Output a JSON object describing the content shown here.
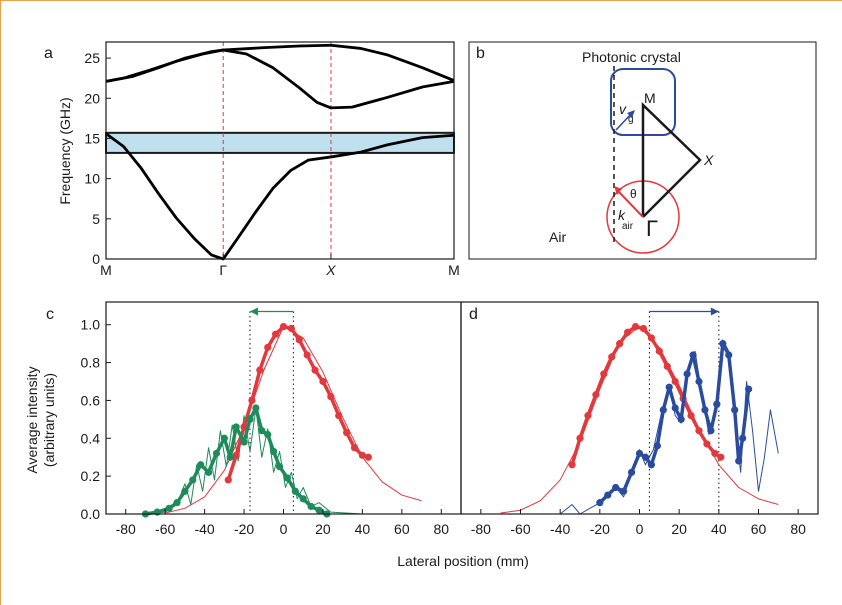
{
  "figure": {
    "frame_color": "#e8a24a",
    "x_axis_label": "Lateral position (mm)",
    "y_axis_label_cd": [
      "Average intensity",
      "(arbitrary units)"
    ]
  },
  "chart_data": [
    {
      "panel": "a",
      "type": "line",
      "ylabel": "Frequency (GHz)",
      "ylim": [
        0,
        27
      ],
      "x_tick_labels": [
        "M",
        "Γ",
        "X",
        "M"
      ],
      "y_ticks": [
        0,
        5,
        10,
        15,
        20,
        25
      ],
      "band_gap": {
        "from": 13.2,
        "to": 15.7,
        "color": "#bfe0ef"
      },
      "bands": [
        {
          "name": "band1",
          "points": [
            [
              0,
              15.6
            ],
            [
              0.1,
              14.0
            ],
            [
              0.2,
              11.3
            ],
            [
              0.3,
              8.1
            ],
            [
              0.4,
              5.1
            ],
            [
              0.5,
              2.6
            ],
            [
              0.6,
              0.5
            ],
            [
              0.667,
              0
            ],
            [
              0.75,
              2.6
            ],
            [
              0.85,
              5.8
            ],
            [
              0.95,
              8.8
            ],
            [
              1.05,
              11.0
            ],
            [
              1.15,
              12.3
            ],
            [
              1.28,
              12.7
            ],
            [
              1.45,
              13.3
            ],
            [
              1.6,
              14.2
            ],
            [
              1.8,
              15.1
            ],
            [
              1.98,
              15.4
            ]
          ]
        },
        {
          "name": "band2",
          "points": [
            [
              0,
              22.1
            ],
            [
              0.15,
              22.7
            ],
            [
              0.3,
              23.8
            ],
            [
              0.45,
              25.0
            ],
            [
              0.6,
              25.8
            ],
            [
              0.667,
              26.0
            ],
            [
              0.8,
              25.5
            ],
            [
              0.95,
              23.8
            ],
            [
              1.1,
              21.3
            ],
            [
              1.2,
              19.5
            ],
            [
              1.28,
              18.8
            ],
            [
              1.4,
              18.9
            ],
            [
              1.6,
              20.1
            ],
            [
              1.8,
              21.4
            ],
            [
              1.98,
              22.1
            ]
          ]
        },
        {
          "name": "band3",
          "points": [
            [
              0,
              22.1
            ],
            [
              0.1,
              22.5
            ],
            [
              0.25,
              23.5
            ],
            [
              0.4,
              24.6
            ],
            [
              0.55,
              25.5
            ],
            [
              0.667,
              26.0
            ],
            [
              0.9,
              26.3
            ],
            [
              1.1,
              26.5
            ],
            [
              1.28,
              26.6
            ],
            [
              1.45,
              26.2
            ],
            [
              1.6,
              25.4
            ],
            [
              1.8,
              23.8
            ],
            [
              1.98,
              22.2
            ]
          ]
        }
      ],
      "x_positions": [
        0,
        0.667,
        1.28,
        1.98
      ]
    },
    {
      "panel": "b",
      "type": "diagram",
      "labels": {
        "top": "Photonic crystal",
        "bottom": "Air",
        "vg": "v",
        "vg_sub": "g",
        "k": "k",
        "k_sub": "air",
        "theta": "θ",
        "m": "M",
        "x": "X",
        "gamma": "Γ"
      }
    },
    {
      "panel": "c",
      "type": "scatter",
      "xlim": [
        -90,
        90
      ],
      "ylim": [
        0,
        1.12
      ],
      "x_ticks": [
        -80,
        -60,
        -40,
        -20,
        0,
        20,
        40,
        60,
        80
      ],
      "y_ticks": [
        0.0,
        0.2,
        0.4,
        0.6,
        0.8,
        1.0
      ],
      "vlines": [
        -17,
        5
      ],
      "arrow": {
        "from": 5,
        "to": -17,
        "y": 1.07,
        "color": "#1f8a5a"
      },
      "series": [
        {
          "name": "incident",
          "color": "#e0393e",
          "kind": "dots",
          "points": [
            [
              -28,
              0.18
            ],
            [
              -24,
              0.31
            ],
            [
              -20,
              0.46
            ],
            [
              -16,
              0.6
            ],
            [
              -12,
              0.76
            ],
            [
              -8,
              0.88
            ],
            [
              -4,
              0.95
            ],
            [
              0,
              0.99
            ],
            [
              4,
              0.98
            ],
            [
              8,
              0.92
            ],
            [
              12,
              0.84
            ],
            [
              16,
              0.76
            ],
            [
              20,
              0.7
            ],
            [
              24,
              0.62
            ],
            [
              28,
              0.52
            ],
            [
              32,
              0.43
            ],
            [
              36,
              0.35
            ],
            [
              40,
              0.31
            ],
            [
              43,
              0.3
            ]
          ]
        },
        {
          "name": "incident-fit",
          "color": "#e0393e",
          "kind": "line",
          "points": [
            [
              -60,
              0.005
            ],
            [
              -50,
              0.03
            ],
            [
              -40,
              0.09
            ],
            [
              -30,
              0.23
            ],
            [
              -20,
              0.46
            ],
            [
              -10,
              0.76
            ],
            [
              0,
              0.99
            ],
            [
              10,
              0.93
            ],
            [
              20,
              0.75
            ],
            [
              30,
              0.51
            ],
            [
              40,
              0.3
            ],
            [
              50,
              0.17
            ],
            [
              60,
              0.1
            ],
            [
              70,
              0.07
            ]
          ]
        },
        {
          "name": "transmitted",
          "color": "#1f8a5a",
          "kind": "dots",
          "points": [
            [
              -70,
              0.0
            ],
            [
              -64,
              0.01
            ],
            [
              -58,
              0.03
            ],
            [
              -54,
              0.06
            ],
            [
              -50,
              0.12
            ],
            [
              -46,
              0.18
            ],
            [
              -42,
              0.26
            ],
            [
              -38,
              0.22
            ],
            [
              -34,
              0.32
            ],
            [
              -30,
              0.4
            ],
            [
              -27,
              0.3
            ],
            [
              -24,
              0.46
            ],
            [
              -20,
              0.38
            ],
            [
              -17,
              0.5
            ],
            [
              -14,
              0.56
            ],
            [
              -11,
              0.44
            ],
            [
              -8,
              0.42
            ],
            [
              -5,
              0.33
            ],
            [
              -2,
              0.25
            ],
            [
              2,
              0.19
            ],
            [
              6,
              0.12
            ],
            [
              10,
              0.08
            ],
            [
              14,
              0.04
            ],
            [
              18,
              0.02
            ],
            [
              22,
              0.0
            ]
          ]
        },
        {
          "name": "transmitted-sim",
          "color": "#1f8a5a",
          "kind": "line",
          "points": [
            [
              -70,
              0.0
            ],
            [
              -60,
              0.01
            ],
            [
              -54,
              0.05
            ],
            [
              -50,
              0.16
            ],
            [
              -47,
              0.05
            ],
            [
              -44,
              0.26
            ],
            [
              -41,
              0.12
            ],
            [
              -38,
              0.35
            ],
            [
              -35,
              0.18
            ],
            [
              -32,
              0.44
            ],
            [
              -29,
              0.25
            ],
            [
              -26,
              0.47
            ],
            [
              -23,
              0.28
            ],
            [
              -20,
              0.52
            ],
            [
              -17,
              0.33
            ],
            [
              -14,
              0.56
            ],
            [
              -11,
              0.3
            ],
            [
              -8,
              0.45
            ],
            [
              -5,
              0.22
            ],
            [
              -2,
              0.33
            ],
            [
              1,
              0.14
            ],
            [
              4,
              0.22
            ],
            [
              7,
              0.08
            ],
            [
              10,
              0.14
            ],
            [
              14,
              0.04
            ],
            [
              18,
              0.06
            ],
            [
              24,
              0.01
            ],
            [
              40,
              0.0
            ]
          ]
        }
      ]
    },
    {
      "panel": "d",
      "type": "scatter",
      "xlim": [
        -90,
        90
      ],
      "ylim": [
        0,
        1.12
      ],
      "x_ticks": [
        -80,
        -60,
        -40,
        -20,
        0,
        20,
        40,
        60,
        80
      ],
      "vlines": [
        5,
        40
      ],
      "arrow": {
        "from": 5,
        "to": 40,
        "y": 1.07,
        "color": "#2b4c9e"
      },
      "series": [
        {
          "name": "incident",
          "color": "#e0393e",
          "kind": "dots",
          "points": [
            [
              -34,
              0.26
            ],
            [
              -30,
              0.4
            ],
            [
              -26,
              0.52
            ],
            [
              -22,
              0.63
            ],
            [
              -18,
              0.74
            ],
            [
              -14,
              0.83
            ],
            [
              -10,
              0.9
            ],
            [
              -6,
              0.96
            ],
            [
              -2,
              0.99
            ],
            [
              2,
              0.98
            ],
            [
              6,
              0.93
            ],
            [
              10,
              0.86
            ],
            [
              14,
              0.78
            ],
            [
              18,
              0.7
            ],
            [
              22,
              0.61
            ],
            [
              26,
              0.52
            ],
            [
              30,
              0.44
            ],
            [
              34,
              0.37
            ],
            [
              38,
              0.32
            ],
            [
              41,
              0.3
            ]
          ]
        },
        {
          "name": "incident-fit",
          "color": "#e0393e",
          "kind": "line",
          "points": [
            [
              -70,
              0.005
            ],
            [
              -60,
              0.02
            ],
            [
              -50,
              0.07
            ],
            [
              -40,
              0.18
            ],
            [
              -30,
              0.38
            ],
            [
              -20,
              0.66
            ],
            [
              -10,
              0.91
            ],
            [
              0,
              0.99
            ],
            [
              10,
              0.88
            ],
            [
              20,
              0.68
            ],
            [
              30,
              0.45
            ],
            [
              40,
              0.26
            ],
            [
              50,
              0.14
            ],
            [
              60,
              0.08
            ],
            [
              70,
              0.05
            ]
          ]
        },
        {
          "name": "transmitted",
          "color": "#2b4c9e",
          "kind": "dots",
          "points": [
            [
              -20,
              0.06
            ],
            [
              -16,
              0.1
            ],
            [
              -12,
              0.14
            ],
            [
              -8,
              0.12
            ],
            [
              -4,
              0.22
            ],
            [
              0,
              0.32
            ],
            [
              3,
              0.3
            ],
            [
              6,
              0.26
            ],
            [
              9,
              0.36
            ],
            [
              12,
              0.55
            ],
            [
              15,
              0.67
            ],
            [
              18,
              0.56
            ],
            [
              21,
              0.5
            ],
            [
              24,
              0.74
            ],
            [
              27,
              0.84
            ],
            [
              30,
              0.7
            ],
            [
              33,
              0.55
            ],
            [
              36,
              0.44
            ],
            [
              39,
              0.58
            ],
            [
              42,
              0.9
            ],
            [
              45,
              0.84
            ],
            [
              48,
              0.55
            ],
            [
              50,
              0.28
            ],
            [
              52,
              0.4
            ],
            [
              55,
              0.66
            ]
          ]
        },
        {
          "name": "transmitted-sim",
          "color": "#2b4c9e",
          "kind": "line",
          "points": [
            [
              -70,
              0.0
            ],
            [
              -40,
              0.0
            ],
            [
              -34,
              0.05
            ],
            [
              -30,
              0.0
            ],
            [
              -20,
              0.06
            ],
            [
              -12,
              0.14
            ],
            [
              -8,
              0.09
            ],
            [
              -3,
              0.26
            ],
            [
              0,
              0.34
            ],
            [
              3,
              0.26
            ],
            [
              7,
              0.34
            ],
            [
              11,
              0.53
            ],
            [
              15,
              0.68
            ],
            [
              18,
              0.52
            ],
            [
              21,
              0.48
            ],
            [
              25,
              0.78
            ],
            [
              28,
              0.86
            ],
            [
              31,
              0.66
            ],
            [
              35,
              0.42
            ],
            [
              38,
              0.52
            ],
            [
              42,
              0.92
            ],
            [
              45,
              0.86
            ],
            [
              48,
              0.5
            ],
            [
              51,
              0.22
            ],
            [
              54,
              0.7
            ],
            [
              57,
              0.44
            ],
            [
              60,
              0.12
            ],
            [
              63,
              0.3
            ],
            [
              66,
              0.55
            ],
            [
              70,
              0.32
            ]
          ]
        }
      ]
    }
  ]
}
